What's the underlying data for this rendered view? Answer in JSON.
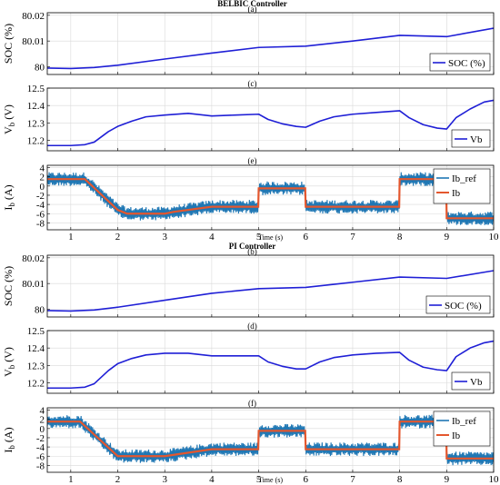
{
  "chart_data": [
    {
      "type": "line",
      "title": "BELBIC Controller",
      "subtitle": "(a)",
      "ylabel": "SOC (%)",
      "xlim": [
        0.5,
        10
      ],
      "ylim": [
        79.997,
        80.021
      ],
      "xticks": [
        1,
        2,
        3,
        4,
        5,
        6,
        7,
        8,
        9,
        10
      ],
      "yticks": [
        80,
        80.01,
        80.02
      ],
      "yticklabels": [
        "80",
        "80.01",
        "80.02"
      ],
      "show_xticklabels": false,
      "xlabel": "",
      "grid": true,
      "legend_position": "bottom-right",
      "series": [
        {
          "name": "SOC (%)",
          "color": "#1f1fd6",
          "x": [
            0.5,
            1.0,
            1.5,
            2.0,
            3.0,
            4.0,
            5.0,
            6.0,
            7.0,
            8.0,
            9.0,
            10.0
          ],
          "y": [
            79.9995,
            79.9993,
            79.9997,
            80.0006,
            80.003,
            80.0053,
            80.0075,
            80.008,
            80.01,
            80.0122,
            80.0117,
            80.015
          ]
        }
      ]
    },
    {
      "type": "line",
      "subtitle": "(c)",
      "ylabel": "V_b (V)",
      "xlim": [
        0.5,
        10
      ],
      "ylim": [
        12.14,
        12.5
      ],
      "xticks": [
        1,
        2,
        3,
        4,
        5,
        6,
        7,
        8,
        9,
        10
      ],
      "yticks": [
        12.2,
        12.3,
        12.4,
        12.5
      ],
      "yticklabels": [
        "12.2",
        "12.3",
        "12.4",
        "12.5"
      ],
      "show_xticklabels": false,
      "xlabel": "",
      "grid": true,
      "legend_position": "bottom-right",
      "series": [
        {
          "name": "Vb",
          "color": "#1f1fd6",
          "x": [
            0.5,
            1.0,
            1.3,
            1.5,
            1.8,
            2.0,
            2.3,
            2.6,
            3.0,
            3.5,
            4.0,
            4.5,
            5.0,
            5.2,
            5.5,
            5.8,
            6.0,
            6.3,
            6.6,
            7.0,
            7.5,
            8.0,
            8.2,
            8.5,
            8.8,
            9.0,
            9.2,
            9.5,
            9.8,
            10.0
          ],
          "y": [
            12.17,
            12.17,
            12.175,
            12.19,
            12.25,
            12.28,
            12.31,
            12.335,
            12.345,
            12.355,
            12.34,
            12.345,
            12.35,
            12.32,
            12.295,
            12.28,
            12.275,
            12.31,
            12.335,
            12.35,
            12.36,
            12.37,
            12.33,
            12.29,
            12.27,
            12.265,
            12.33,
            12.38,
            12.42,
            12.43
          ]
        }
      ]
    },
    {
      "type": "line",
      "subtitle": "(e)",
      "ylabel": "I_b (A)",
      "xlim": [
        0.5,
        10
      ],
      "ylim": [
        -9.5,
        4.5
      ],
      "xticks": [
        1,
        2,
        3,
        4,
        5,
        6,
        7,
        8,
        9,
        10
      ],
      "yticks": [
        4,
        2,
        0,
        -2,
        -4,
        -6,
        -8
      ],
      "yticklabels": [
        "4",
        "2",
        "0",
        "-2",
        "-4",
        "-6",
        "-8"
      ],
      "show_xticklabels": true,
      "xticklabels": [
        "1",
        "2",
        "3",
        "4",
        "5",
        "6",
        "7",
        "8",
        "9",
        "10"
      ],
      "xlabel": "Time (s)",
      "grid": true,
      "legend_position": "top-right",
      "series": [
        {
          "name": "Ib_ref",
          "color": "#1f77b4",
          "x": [
            0.5,
            1.0,
            1.3,
            2.0,
            2.2,
            3.0,
            3.2,
            4.0,
            4.99,
            5.0,
            5.99,
            6.0,
            7.99,
            8.0,
            8.99,
            9.0,
            10.0
          ],
          "y": [
            1.5,
            1.5,
            1.5,
            -5.2,
            -6.0,
            -6.0,
            -5.6,
            -4.5,
            -4.5,
            -0.5,
            -0.5,
            -4.5,
            -4.5,
            1.5,
            1.5,
            -7.0,
            -7.0
          ]
        },
        {
          "name": "Ib",
          "color": "#e4572e",
          "x": [
            0.5,
            1.0,
            1.3,
            2.0,
            2.2,
            3.0,
            3.2,
            4.0,
            4.99,
            5.0,
            5.99,
            6.0,
            7.99,
            8.0,
            8.99,
            9.0,
            10.0
          ],
          "y": [
            1.5,
            1.5,
            1.5,
            -5.2,
            -6.0,
            -6.0,
            -5.6,
            -4.5,
            -4.5,
            -0.5,
            -0.5,
            -4.5,
            -4.5,
            1.5,
            1.5,
            -7.0,
            -7.0
          ]
        }
      ]
    },
    {
      "type": "line",
      "title": "PI Controller",
      "subtitle": "(b)",
      "ylabel": "SOC (%)",
      "xlim": [
        0.5,
        10
      ],
      "ylim": [
        79.997,
        80.021
      ],
      "xticks": [
        1,
        2,
        3,
        4,
        5,
        6,
        7,
        8,
        9,
        10
      ],
      "yticks": [
        80,
        80.01,
        80.02
      ],
      "yticklabels": [
        "80",
        "80.01",
        "80.02"
      ],
      "show_xticklabels": false,
      "xlabel": "",
      "grid": true,
      "legend_position": "bottom-right",
      "series": [
        {
          "name": "SOC (%)",
          "color": "#1f1fd6",
          "x": [
            0.5,
            1.0,
            1.5,
            2.0,
            3.0,
            4.0,
            5.0,
            6.0,
            7.0,
            8.0,
            9.0,
            10.0
          ],
          "y": [
            79.9995,
            79.9993,
            79.9997,
            80.0008,
            80.0035,
            80.0062,
            80.008,
            80.0085,
            80.0105,
            80.0125,
            80.012,
            80.015
          ]
        }
      ]
    },
    {
      "type": "line",
      "subtitle": "(d)",
      "ylabel": "V_b (V)",
      "xlim": [
        0.5,
        10
      ],
      "ylim": [
        12.14,
        12.5
      ],
      "xticks": [
        1,
        2,
        3,
        4,
        5,
        6,
        7,
        8,
        9,
        10
      ],
      "yticks": [
        12.2,
        12.3,
        12.4,
        12.5
      ],
      "yticklabels": [
        "12.2",
        "12.3",
        "12.4",
        "12.5"
      ],
      "show_xticklabels": false,
      "xlabel": "",
      "grid": true,
      "legend_position": "bottom-right",
      "series": [
        {
          "name": "Vb",
          "color": "#1f1fd6",
          "x": [
            0.5,
            1.0,
            1.3,
            1.5,
            1.8,
            2.0,
            2.3,
            2.6,
            3.0,
            3.5,
            4.0,
            4.5,
            5.0,
            5.2,
            5.5,
            5.8,
            6.0,
            6.3,
            6.6,
            7.0,
            7.5,
            8.0,
            8.2,
            8.5,
            8.8,
            9.0,
            9.2,
            9.5,
            9.8,
            10.0
          ],
          "y": [
            12.17,
            12.17,
            12.175,
            12.195,
            12.27,
            12.31,
            12.34,
            12.36,
            12.37,
            12.37,
            12.355,
            12.355,
            12.355,
            12.32,
            12.295,
            12.28,
            12.28,
            12.32,
            12.345,
            12.36,
            12.37,
            12.375,
            12.33,
            12.29,
            12.275,
            12.27,
            12.35,
            12.4,
            12.43,
            12.44
          ]
        }
      ]
    },
    {
      "type": "line",
      "subtitle": "(f)",
      "ylabel": "I_b (A)",
      "xlim": [
        0.5,
        10
      ],
      "ylim": [
        -9.5,
        4.5
      ],
      "xticks": [
        1,
        2,
        3,
        4,
        5,
        6,
        7,
        8,
        9,
        10
      ],
      "yticks": [
        4,
        2,
        0,
        -2,
        -4,
        -6,
        -8
      ],
      "yticklabels": [
        "4",
        "2",
        "0",
        "-2",
        "-4",
        "-6",
        "-8"
      ],
      "show_xticklabels": true,
      "xticklabels": [
        "1",
        "2",
        "3",
        "4",
        "5",
        "6",
        "7",
        "8",
        "9",
        "10"
      ],
      "xlabel": "Time (s)",
      "grid": true,
      "legend_position": "top-right",
      "series": [
        {
          "name": "Ib_ref",
          "color": "#1f77b4",
          "x": [
            0.5,
            1.0,
            1.2,
            2.0,
            3.0,
            4.0,
            4.99,
            5.0,
            5.99,
            6.0,
            7.99,
            8.0,
            8.99,
            9.0,
            10.0
          ],
          "y": [
            1.5,
            1.5,
            1.5,
            -6.0,
            -6.0,
            -4.5,
            -4.5,
            -0.5,
            -0.5,
            -4.5,
            -4.5,
            1.5,
            1.5,
            -6.5,
            -6.5
          ]
        },
        {
          "name": "Ib",
          "color": "#e4572e",
          "x": [
            0.5,
            1.0,
            1.2,
            2.0,
            3.0,
            4.0,
            4.99,
            5.0,
            5.99,
            6.0,
            7.99,
            8.0,
            8.99,
            9.0,
            10.0
          ],
          "y": [
            1.5,
            1.5,
            1.5,
            -6.0,
            -6.0,
            -4.5,
            -4.5,
            -0.5,
            -0.5,
            -4.5,
            -4.5,
            1.5,
            1.5,
            -6.5,
            -6.5
          ]
        }
      ]
    }
  ]
}
